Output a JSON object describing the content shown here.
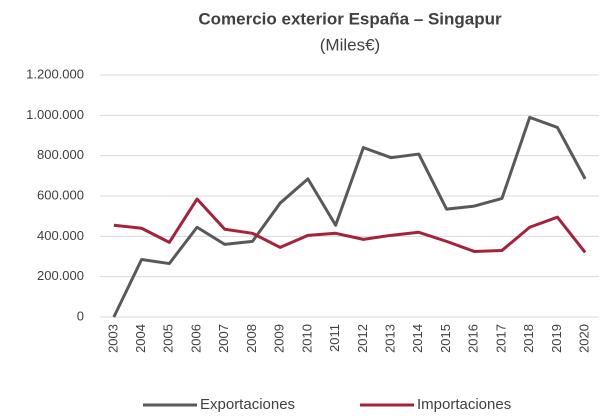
{
  "chart_data": {
    "type": "line",
    "title": "Comercio exterior España – Singapur",
    "subtitle": "(Miles€)",
    "categories": [
      "2003",
      "2004",
      "2005",
      "2006",
      "2007",
      "2008",
      "2009",
      "2010",
      "2011",
      "2012",
      "2013",
      "2014",
      "2015",
      "2016",
      "2017",
      "2018",
      "2019",
      "2020"
    ],
    "series": [
      {
        "name": "Exportaciones",
        "color": "#595959",
        "values": [
          0,
          285000,
          265000,
          445000,
          360000,
          375000,
          565000,
          685000,
          455000,
          840000,
          790000,
          808000,
          535000,
          550000,
          588000,
          990000,
          940000,
          685000
        ]
      },
      {
        "name": "Importaciones",
        "color": "#a5223c",
        "values": [
          455000,
          440000,
          370000,
          585000,
          435000,
          415000,
          345000,
          405000,
          415000,
          385000,
          405000,
          420000,
          375000,
          325000,
          330000,
          445000,
          495000,
          320000
        ]
      }
    ],
    "ylim": [
      0,
      1200000
    ],
    "yticks": [
      0,
      {
        "value": 200000,
        "label": "200.000"
      },
      {
        "value": 400000,
        "label": "400.000"
      },
      {
        "value": 600000,
        "label": "600.000"
      },
      {
        "value": 800000,
        "label": "800.000"
      },
      {
        "value": 1000000,
        "label": "1.000.000"
      },
      {
        "value": 1200000,
        "label": "1.200.000"
      }
    ],
    "grid": true,
    "legend": "bottom"
  }
}
